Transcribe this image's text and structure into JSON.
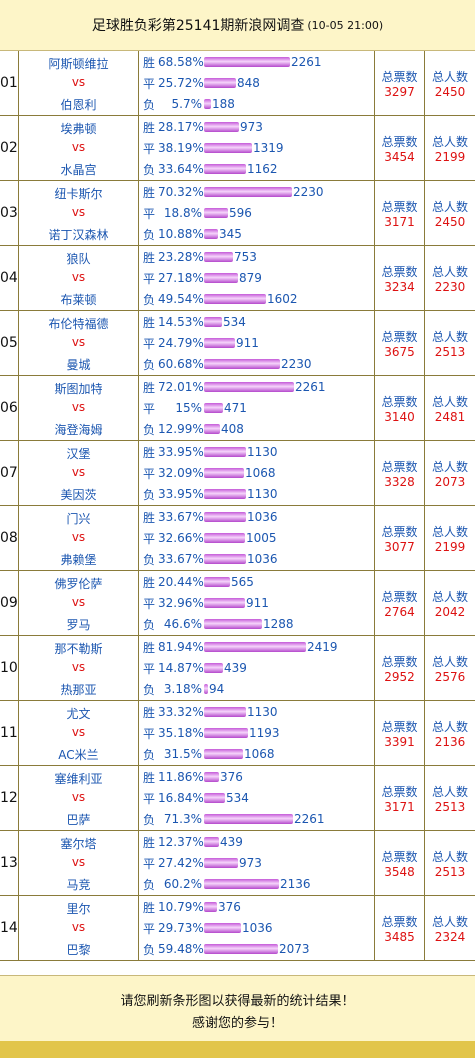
{
  "header": {
    "title": "足球胜负彩第25141期新浪网调查",
    "date": "(10-05 21:00)"
  },
  "labels": {
    "win": "胜",
    "draw": "平",
    "lose": "负",
    "vs": "vs",
    "total_votes": "总票数",
    "total_people": "总人数"
  },
  "matches": [
    {
      "num": "01",
      "home": "阿斯顿维拉",
      "away": "伯恩利",
      "win": {
        "pct": "68.58%",
        "count": "2261",
        "frac": 0.6858
      },
      "draw": {
        "pct": "25.72%",
        "count": "848",
        "frac": 0.2572
      },
      "lose": {
        "pct": "5.7%",
        "count": "188",
        "frac": 0.057
      },
      "total_votes": "3297",
      "total_people": "2450"
    },
    {
      "num": "02",
      "home": "埃弗顿",
      "away": "水晶宫",
      "win": {
        "pct": "28.17%",
        "count": "973",
        "frac": 0.2817
      },
      "draw": {
        "pct": "38.19%",
        "count": "1319",
        "frac": 0.3819
      },
      "lose": {
        "pct": "33.64%",
        "count": "1162",
        "frac": 0.3364
      },
      "total_votes": "3454",
      "total_people": "2199"
    },
    {
      "num": "03",
      "home": "纽卡斯尔",
      "away": "诺丁汉森林",
      "win": {
        "pct": "70.32%",
        "count": "2230",
        "frac": 0.7032
      },
      "draw": {
        "pct": "18.8%",
        "count": "596",
        "frac": 0.188
      },
      "lose": {
        "pct": "10.88%",
        "count": "345",
        "frac": 0.1088
      },
      "total_votes": "3171",
      "total_people": "2450"
    },
    {
      "num": "04",
      "home": "狼队",
      "away": "布莱顿",
      "win": {
        "pct": "23.28%",
        "count": "753",
        "frac": 0.2328
      },
      "draw": {
        "pct": "27.18%",
        "count": "879",
        "frac": 0.2718
      },
      "lose": {
        "pct": "49.54%",
        "count": "1602",
        "frac": 0.4954
      },
      "total_votes": "3234",
      "total_people": "2230"
    },
    {
      "num": "05",
      "home": "布伦特福德",
      "away": "曼城",
      "win": {
        "pct": "14.53%",
        "count": "534",
        "frac": 0.1453
      },
      "draw": {
        "pct": "24.79%",
        "count": "911",
        "frac": 0.2479
      },
      "lose": {
        "pct": "60.68%",
        "count": "2230",
        "frac": 0.6068
      },
      "total_votes": "3675",
      "total_people": "2513"
    },
    {
      "num": "06",
      "home": "斯图加特",
      "away": "海登海姆",
      "win": {
        "pct": "72.01%",
        "count": "2261",
        "frac": 0.7201
      },
      "draw": {
        "pct": "15%",
        "count": "471",
        "frac": 0.15
      },
      "lose": {
        "pct": "12.99%",
        "count": "408",
        "frac": 0.1299
      },
      "total_votes": "3140",
      "total_people": "2481"
    },
    {
      "num": "07",
      "home": "汉堡",
      "away": "美因茨",
      "win": {
        "pct": "33.95%",
        "count": "1130",
        "frac": 0.3395
      },
      "draw": {
        "pct": "32.09%",
        "count": "1068",
        "frac": 0.3209
      },
      "lose": {
        "pct": "33.95%",
        "count": "1130",
        "frac": 0.3395
      },
      "total_votes": "3328",
      "total_people": "2073"
    },
    {
      "num": "08",
      "home": "门兴",
      "away": "弗赖堡",
      "win": {
        "pct": "33.67%",
        "count": "1036",
        "frac": 0.3367
      },
      "draw": {
        "pct": "32.66%",
        "count": "1005",
        "frac": 0.3266
      },
      "lose": {
        "pct": "33.67%",
        "count": "1036",
        "frac": 0.3367
      },
      "total_votes": "3077",
      "total_people": "2199"
    },
    {
      "num": "09",
      "home": "佛罗伦萨",
      "away": "罗马",
      "win": {
        "pct": "20.44%",
        "count": "565",
        "frac": 0.2044
      },
      "draw": {
        "pct": "32.96%",
        "count": "911",
        "frac": 0.3296
      },
      "lose": {
        "pct": "46.6%",
        "count": "1288",
        "frac": 0.466
      },
      "total_votes": "2764",
      "total_people": "2042"
    },
    {
      "num": "10",
      "home": "那不勒斯",
      "away": "热那亚",
      "win": {
        "pct": "81.94%",
        "count": "2419",
        "frac": 0.8194
      },
      "draw": {
        "pct": "14.87%",
        "count": "439",
        "frac": 0.1487
      },
      "lose": {
        "pct": "3.18%",
        "count": "94",
        "frac": 0.0318
      },
      "total_votes": "2952",
      "total_people": "2576"
    },
    {
      "num": "11",
      "home": "尤文",
      "away": "AC米兰",
      "win": {
        "pct": "33.32%",
        "count": "1130",
        "frac": 0.3332
      },
      "draw": {
        "pct": "35.18%",
        "count": "1193",
        "frac": 0.3518
      },
      "lose": {
        "pct": "31.5%",
        "count": "1068",
        "frac": 0.315
      },
      "total_votes": "3391",
      "total_people": "2136"
    },
    {
      "num": "12",
      "home": "塞维利亚",
      "away": "巴萨",
      "win": {
        "pct": "11.86%",
        "count": "376",
        "frac": 0.1186
      },
      "draw": {
        "pct": "16.84%",
        "count": "534",
        "frac": 0.1684
      },
      "lose": {
        "pct": "71.3%",
        "count": "2261",
        "frac": 0.713
      },
      "total_votes": "3171",
      "total_people": "2513"
    },
    {
      "num": "13",
      "home": "塞尔塔",
      "away": "马竞",
      "win": {
        "pct": "12.37%",
        "count": "439",
        "frac": 0.1237
      },
      "draw": {
        "pct": "27.42%",
        "count": "973",
        "frac": 0.2742
      },
      "lose": {
        "pct": "60.2%",
        "count": "2136",
        "frac": 0.602
      },
      "total_votes": "3548",
      "total_people": "2513"
    },
    {
      "num": "14",
      "home": "里尔",
      "away": "巴黎",
      "win": {
        "pct": "10.79%",
        "count": "376",
        "frac": 0.1079
      },
      "draw": {
        "pct": "29.73%",
        "count": "1036",
        "frac": 0.2973
      },
      "lose": {
        "pct": "59.48%",
        "count": "2073",
        "frac": 0.5948
      },
      "total_votes": "3485",
      "total_people": "2324"
    }
  ],
  "footer": {
    "line1": "请您刷新条形图以获得最新的统计结果！",
    "line2": "感谢您的参与！"
  },
  "colors": {
    "header_bg": "#fdf5c8",
    "team": "#1b56b0",
    "vs": "#d11",
    "bar": "#c55ad8",
    "bottom_band": "#e2c54a"
  }
}
